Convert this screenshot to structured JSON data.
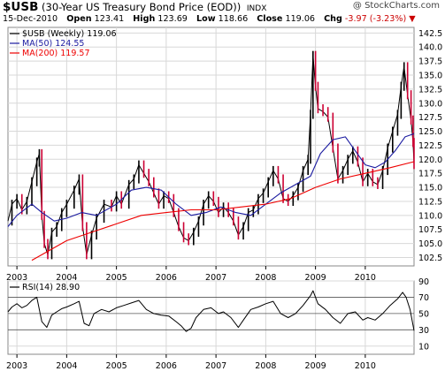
{
  "header": {
    "symbol": "$USB",
    "description": "(30-Year US Treasury Bond Price (EOD))",
    "exchange": "INDX",
    "watermark": "@ StockCharts.com",
    "date": "15-Dec-2010",
    "open_label": "Open",
    "open_value": "123.41",
    "high_label": "High",
    "high_value": "123.69",
    "low_label": "Low",
    "low_value": "118.66",
    "close_label": "Close",
    "close_value": "119.06",
    "chg_label": "Chg",
    "chg_value": "-3.97 (-3.23%)",
    "chg_arrow": "▼"
  },
  "colors": {
    "price_up": "#000000",
    "price_down": "#cc0033",
    "ma50": "#1a1aa0",
    "ma200": "#ee0000",
    "rsi": "#000000",
    "grid": "#d8d8d8",
    "frame": "#888888"
  },
  "chart_data": [
    {
      "type": "line",
      "subtype": "weekly price bars (OHLC)",
      "legend_position": "top-left",
      "grid": true,
      "legend": [
        {
          "label": "$USB (Weekly) 119.06",
          "color": "#000000"
        },
        {
          "label": "MA(50) 124.55",
          "color": "#1a1aa0"
        },
        {
          "label": "MA(200) 119.57",
          "color": "#ee0000"
        }
      ],
      "x_tick_labels": [
        "2003",
        "2004",
        "2005",
        "2006",
        "2007",
        "2008",
        "2009",
        "2010"
      ],
      "x_range": [
        2002.82,
        2010.98
      ],
      "y_range": [
        101.0,
        143.5
      ],
      "y_ticks": [
        102.5,
        105.0,
        107.5,
        110.0,
        112.5,
        115.0,
        117.5,
        120.0,
        122.5,
        125.0,
        127.5,
        130.0,
        132.5,
        135.0,
        137.5,
        140.0,
        142.5
      ],
      "y_axis_side": "right",
      "series": [
        {
          "name": "$USB (Weekly)",
          "points": [
            [
              2002.82,
              109.0
            ],
            [
              2002.9,
              112.0
            ],
            [
              2003.0,
              113.0
            ],
            [
              2003.1,
              111.0
            ],
            [
              2003.2,
              112.5
            ],
            [
              2003.3,
              116.0
            ],
            [
              2003.4,
              119.5
            ],
            [
              2003.45,
              121.0
            ],
            [
              2003.5,
              110.0
            ],
            [
              2003.55,
              105.0
            ],
            [
              2003.62,
              103.0
            ],
            [
              2003.7,
              107.0
            ],
            [
              2003.8,
              108.0
            ],
            [
              2003.9,
              110.5
            ],
            [
              2004.0,
              112.0
            ],
            [
              2004.15,
              114.5
            ],
            [
              2004.25,
              116.5
            ],
            [
              2004.32,
              108.0
            ],
            [
              2004.4,
              103.0
            ],
            [
              2004.5,
              106.5
            ],
            [
              2004.6,
              109.5
            ],
            [
              2004.75,
              112.0
            ],
            [
              2004.9,
              111.5
            ],
            [
              2005.0,
              113.5
            ],
            [
              2005.1,
              112.0
            ],
            [
              2005.25,
              115.5
            ],
            [
              2005.35,
              116.5
            ],
            [
              2005.45,
              119.0
            ],
            [
              2005.55,
              117.5
            ],
            [
              2005.65,
              116.0
            ],
            [
              2005.75,
              114.0
            ],
            [
              2005.85,
              112.0
            ],
            [
              2005.95,
              113.5
            ],
            [
              2006.05,
              113.0
            ],
            [
              2006.15,
              110.5
            ],
            [
              2006.25,
              108.0
            ],
            [
              2006.35,
              106.0
            ],
            [
              2006.45,
              105.5
            ],
            [
              2006.55,
              107.0
            ],
            [
              2006.65,
              109.0
            ],
            [
              2006.75,
              112.0
            ],
            [
              2006.85,
              113.5
            ],
            [
              2006.95,
              112.5
            ],
            [
              2007.05,
              110.5
            ],
            [
              2007.15,
              111.5
            ],
            [
              2007.25,
              110.5
            ],
            [
              2007.35,
              109.0
            ],
            [
              2007.45,
              106.5
            ],
            [
              2007.55,
              108.0
            ],
            [
              2007.65,
              110.5
            ],
            [
              2007.75,
              111.0
            ],
            [
              2007.85,
              113.0
            ],
            [
              2007.95,
              114.0
            ],
            [
              2008.05,
              116.0
            ],
            [
              2008.15,
              118.0
            ],
            [
              2008.25,
              116.5
            ],
            [
              2008.35,
              113.0
            ],
            [
              2008.45,
              112.5
            ],
            [
              2008.55,
              113.5
            ],
            [
              2008.65,
              115.0
            ],
            [
              2008.75,
              118.0
            ],
            [
              2008.85,
              120.0
            ],
            [
              2008.9,
              128.0
            ],
            [
              2008.95,
              138.5
            ],
            [
              2009.0,
              133.0
            ],
            [
              2009.05,
              129.0
            ],
            [
              2009.15,
              128.5
            ],
            [
              2009.25,
              127.5
            ],
            [
              2009.35,
              122.0
            ],
            [
              2009.45,
              116.5
            ],
            [
              2009.55,
              118.0
            ],
            [
              2009.65,
              120.0
            ],
            [
              2009.75,
              121.5
            ],
            [
              2009.85,
              119.5
            ],
            [
              2009.95,
              116.0
            ],
            [
              2010.05,
              117.5
            ],
            [
              2010.15,
              116.0
            ],
            [
              2010.25,
              115.5
            ],
            [
              2010.35,
              118.0
            ],
            [
              2010.45,
              122.0
            ],
            [
              2010.55,
              125.0
            ],
            [
              2010.65,
              128.0
            ],
            [
              2010.72,
              133.0
            ],
            [
              2010.78,
              136.5
            ],
            [
              2010.85,
              131.5
            ],
            [
              2010.92,
              127.0
            ],
            [
              2010.96,
              123.0
            ],
            [
              2010.98,
              119.06
            ]
          ]
        },
        {
          "name": "MA(50)",
          "points": [
            [
              2002.82,
              108.0
            ],
            [
              2003.0,
              110.0
            ],
            [
              2003.3,
              112.0
            ],
            [
              2003.5,
              110.5
            ],
            [
              2003.75,
              109.0
            ],
            [
              2004.0,
              109.5
            ],
            [
              2004.3,
              110.5
            ],
            [
              2004.6,
              110.0
            ],
            [
              2005.0,
              112.0
            ],
            [
              2005.3,
              114.5
            ],
            [
              2005.6,
              115.0
            ],
            [
              2005.9,
              114.5
            ],
            [
              2006.2,
              112.0
            ],
            [
              2006.5,
              110.0
            ],
            [
              2006.8,
              110.5
            ],
            [
              2007.1,
              111.5
            ],
            [
              2007.4,
              110.5
            ],
            [
              2007.7,
              110.0
            ],
            [
              2008.0,
              112.0
            ],
            [
              2008.3,
              114.0
            ],
            [
              2008.6,
              115.5
            ],
            [
              2008.9,
              117.0
            ],
            [
              2009.1,
              121.0
            ],
            [
              2009.35,
              123.5
            ],
            [
              2009.6,
              124.0
            ],
            [
              2009.8,
              121.5
            ],
            [
              2010.0,
              119.0
            ],
            [
              2010.2,
              118.5
            ],
            [
              2010.4,
              119.5
            ],
            [
              2010.6,
              121.5
            ],
            [
              2010.8,
              124.0
            ],
            [
              2010.98,
              124.55
            ]
          ]
        },
        {
          "name": "MA(200)",
          "points": [
            [
              2003.3,
              102.0
            ],
            [
              2003.6,
              103.5
            ],
            [
              2004.0,
              105.5
            ],
            [
              2004.5,
              107.0
            ],
            [
              2005.0,
              108.5
            ],
            [
              2005.5,
              110.0
            ],
            [
              2006.0,
              110.5
            ],
            [
              2006.5,
              111.0
            ],
            [
              2007.0,
              111.0
            ],
            [
              2007.5,
              111.5
            ],
            [
              2008.0,
              112.0
            ],
            [
              2008.5,
              113.0
            ],
            [
              2009.0,
              115.0
            ],
            [
              2009.5,
              116.5
            ],
            [
              2010.0,
              117.5
            ],
            [
              2010.5,
              118.5
            ],
            [
              2010.98,
              119.57
            ]
          ]
        }
      ]
    },
    {
      "type": "line",
      "legend_position": "top-left",
      "grid": true,
      "legend": [
        {
          "label": "RSI(14) 28.90",
          "color": "#000000"
        }
      ],
      "x_tick_labels": [
        "2003",
        "2004",
        "2005",
        "2006",
        "2007",
        "2008",
        "2009",
        "2010"
      ],
      "x_range": [
        2002.82,
        2010.98
      ],
      "y_range": [
        0,
        90
      ],
      "y_ticks": [
        10,
        30,
        50,
        70,
        90
      ],
      "reference_lines": [
        30,
        50,
        70
      ],
      "series": [
        {
          "name": "RSI(14)",
          "points": [
            [
              2002.82,
              52
            ],
            [
              2002.9,
              58
            ],
            [
              2003.0,
              62
            ],
            [
              2003.1,
              57
            ],
            [
              2003.2,
              60
            ],
            [
              2003.3,
              66
            ],
            [
              2003.4,
              70
            ],
            [
              2003.5,
              40
            ],
            [
              2003.6,
              33
            ],
            [
              2003.7,
              48
            ],
            [
              2003.8,
              52
            ],
            [
              2003.9,
              56
            ],
            [
              2004.0,
              58
            ],
            [
              2004.15,
              62
            ],
            [
              2004.25,
              65
            ],
            [
              2004.35,
              38
            ],
            [
              2004.45,
              35
            ],
            [
              2004.55,
              50
            ],
            [
              2004.7,
              55
            ],
            [
              2004.85,
              52
            ],
            [
              2005.0,
              57
            ],
            [
              2005.15,
              60
            ],
            [
              2005.3,
              63
            ],
            [
              2005.45,
              66
            ],
            [
              2005.6,
              55
            ],
            [
              2005.75,
              50
            ],
            [
              2005.9,
              48
            ],
            [
              2006.05,
              47
            ],
            [
              2006.2,
              40
            ],
            [
              2006.3,
              35
            ],
            [
              2006.4,
              28
            ],
            [
              2006.5,
              32
            ],
            [
              2006.6,
              45
            ],
            [
              2006.75,
              55
            ],
            [
              2006.9,
              57
            ],
            [
              2007.05,
              50
            ],
            [
              2007.15,
              52
            ],
            [
              2007.3,
              45
            ],
            [
              2007.45,
              33
            ],
            [
              2007.55,
              42
            ],
            [
              2007.7,
              55
            ],
            [
              2007.85,
              58
            ],
            [
              2008.0,
              62
            ],
            [
              2008.15,
              65
            ],
            [
              2008.3,
              50
            ],
            [
              2008.45,
              45
            ],
            [
              2008.6,
              50
            ],
            [
              2008.75,
              60
            ],
            [
              2008.9,
              72
            ],
            [
              2008.95,
              78
            ],
            [
              2009.05,
              62
            ],
            [
              2009.2,
              55
            ],
            [
              2009.35,
              45
            ],
            [
              2009.5,
              38
            ],
            [
              2009.65,
              50
            ],
            [
              2009.8,
              52
            ],
            [
              2009.95,
              42
            ],
            [
              2010.05,
              45
            ],
            [
              2010.2,
              42
            ],
            [
              2010.35,
              50
            ],
            [
              2010.5,
              60
            ],
            [
              2010.65,
              68
            ],
            [
              2010.75,
              76
            ],
            [
              2010.82,
              70
            ],
            [
              2010.9,
              55
            ],
            [
              2010.98,
              28.9
            ]
          ]
        }
      ]
    }
  ]
}
